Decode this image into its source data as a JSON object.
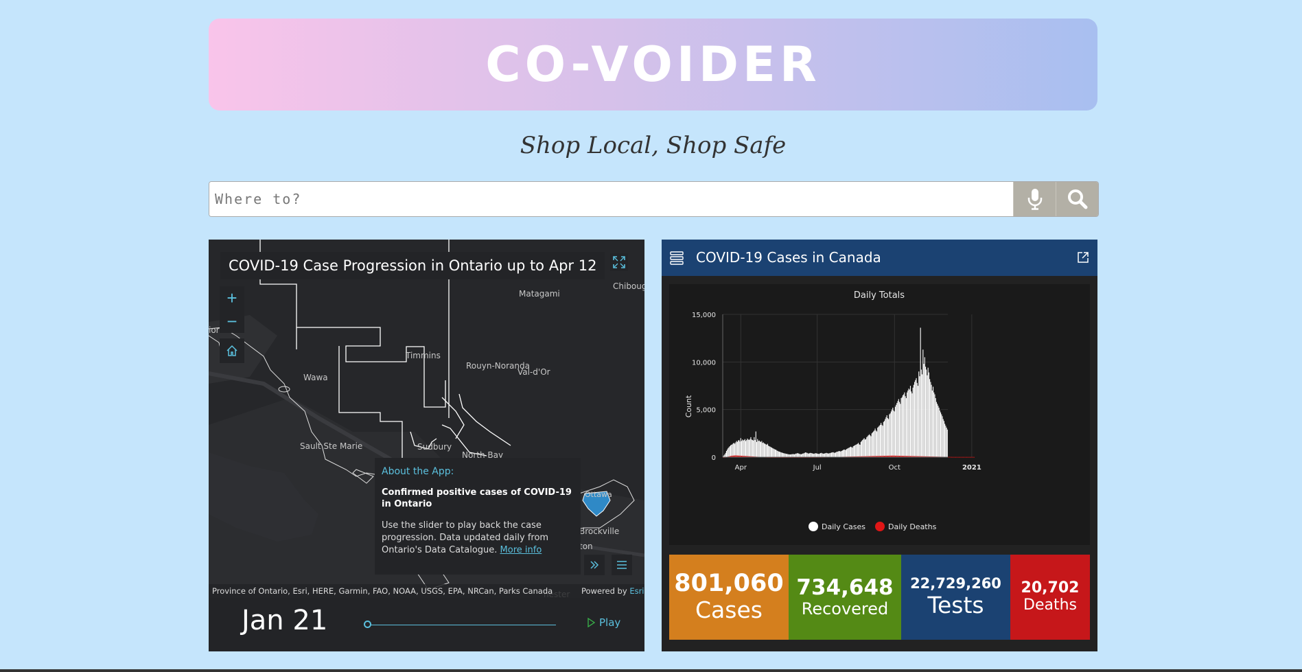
{
  "app": {
    "title": "CO-VOIDER",
    "tagline": "Shop Local, Shop Safe"
  },
  "search": {
    "placeholder": "Where to?",
    "value": "",
    "mic_icon": "microphone-icon",
    "search_icon": "search-icon"
  },
  "map": {
    "title": "COVID-19 Case Progression in Ontario up to Apr 12",
    "cities": [
      "Matagami",
      "Chiboug",
      "Timmins",
      "Rouyn-Noranda",
      "Val-d'Or",
      "Wawa",
      "Sault Ste Marie",
      "Sudbury",
      "North Bay",
      "Ottawa",
      "Brockville",
      "ton",
      "hester",
      "ior"
    ],
    "about": {
      "heading": "About the App:",
      "subheading": "Confirmed positive cases of COVID-19 in Ontario",
      "body": "Use the slider to play back the case progression. Data updated daily from Ontario's Data Catalogue.",
      "link": "More info"
    },
    "attribution": "Province of Ontario, Esri, HERE, Garmin, FAO, NOAA, USGS, EPA, NRCan, Parks Canada",
    "powered_by": "Powered by",
    "powered_link": "Esri",
    "date": "Jan 21",
    "slider_position": 0,
    "play_label": "Play",
    "accent_color": "#5bc0de"
  },
  "dashboard": {
    "title": "COVID-19 Cases in Canada",
    "stats": {
      "cases_value": "801,060",
      "cases_label": "Cases",
      "recovered_value": "734,648",
      "recovered_label": "Recovered",
      "tests_value": "22,729,260",
      "tests_label": "Tests",
      "deaths_value": "20,702",
      "deaths_label": "Deaths"
    },
    "colors": {
      "cases": "#d47f1e",
      "recovered": "#548a15",
      "tests": "#1b4272",
      "deaths": "#c6171a"
    }
  },
  "chart_data": {
    "type": "bar",
    "title": "Daily Totals",
    "xlabel": "",
    "ylabel": "Count",
    "ylim": [
      0,
      15000
    ],
    "yticks": [
      0,
      5000,
      10000,
      15000
    ],
    "ytick_labels": [
      "0",
      "5,000",
      "10,000",
      "15,000"
    ],
    "xtick_labels": [
      "Apr",
      "Jul",
      "Oct",
      "2021"
    ],
    "xtick_days": [
      21,
      112,
      204,
      296
    ],
    "x_start": "2020-03-11",
    "grid": true,
    "legend": "bottom",
    "series": [
      {
        "name": "Daily Cases",
        "color": "#ffffff",
        "values": [
          100,
          180,
          300,
          450,
          650,
          800,
          950,
          1050,
          1150,
          1250,
          1300,
          1350,
          1450,
          1500,
          1400,
          1550,
          1700,
          1600,
          1750,
          1800,
          1650,
          2000,
          1700,
          1850,
          1750,
          1800,
          1900,
          1700,
          1800,
          1950,
          1850,
          1800,
          1900,
          2100,
          1850,
          1800,
          1750,
          2100,
          1800,
          2700,
          1600,
          1900,
          1700,
          1750,
          1650,
          1600,
          1700,
          1500,
          1550,
          1450,
          1400,
          1350,
          1300,
          1400,
          1200,
          1150,
          1100,
          1050,
          1000,
          950,
          900,
          850,
          800,
          780,
          700,
          650,
          600,
          580,
          550,
          500,
          480,
          450,
          420,
          400,
          380,
          350,
          340,
          320,
          300,
          290,
          280,
          300,
          310,
          330,
          320,
          300,
          350,
          380,
          400,
          420,
          380,
          350,
          320,
          300,
          350,
          380,
          400,
          450,
          500,
          480,
          450,
          400,
          380,
          420,
          450,
          430,
          400,
          380,
          350,
          380,
          420,
          400,
          380,
          360,
          340,
          380,
          420,
          450,
          400,
          380,
          360,
          400,
          420,
          450,
          420,
          380,
          400,
          420,
          450,
          480,
          500,
          520,
          480,
          450,
          500,
          550,
          580,
          600,
          650,
          620,
          600,
          650,
          700,
          750,
          800,
          780,
          750,
          850,
          900,
          950,
          1000,
          1050,
          1100,
          1050,
          1000,
          1150,
          1200,
          1250,
          1300,
          1350,
          1400,
          1500,
          1350,
          1300,
          1600,
          1700,
          1800,
          1900,
          2000,
          1850,
          1900,
          2100,
          2200,
          2300,
          2400,
          2300,
          2200,
          2500,
          2600,
          2700,
          2800,
          3000,
          2800,
          2700,
          3100,
          3200,
          3300,
          3400,
          3600,
          3400,
          3300,
          3700,
          3800,
          4000,
          4200,
          4400,
          4100,
          4000,
          4500,
          4600,
          4800,
          5000,
          5200,
          4900,
          4800,
          5300,
          5500,
          5700,
          5900,
          6100,
          5800,
          5600,
          6200,
          6300,
          6500,
          6600,
          6800,
          6400,
          6200,
          6800,
          7000,
          7200,
          7100,
          7500,
          6900,
          6700,
          7300,
          7600,
          7900,
          8100,
          8300,
          7800,
          7500,
          9000,
          8500,
          13600,
          9200,
          8700,
          11300,
          9800,
          10500,
          9500,
          9200,
          8600,
          9400,
          8900,
          8200,
          7900,
          7600,
          7000,
          7400,
          6800,
          6600,
          6200,
          5800,
          5600,
          5400,
          5200,
          4900,
          4700,
          4500,
          4300,
          4000,
          3800,
          3500,
          3300,
          3100,
          2900
        ]
      },
      {
        "name": "Daily Deaths",
        "color": "#e01616",
        "values": [
          0,
          2,
          5,
          10,
          20,
          40,
          60,
          80,
          100,
          120,
          140,
          150,
          160,
          170,
          175,
          180,
          175,
          170,
          165,
          160,
          155,
          150,
          145,
          140,
          135,
          130,
          125,
          120,
          115,
          110,
          100,
          95,
          90,
          85,
          80,
          75,
          70,
          65,
          60,
          55,
          50,
          45,
          40,
          38,
          35,
          30,
          28,
          25,
          22,
          20,
          18,
          15,
          14,
          12,
          10,
          9,
          8,
          7,
          6,
          5,
          5,
          5,
          5,
          5,
          5,
          5,
          5,
          5,
          5,
          5,
          5,
          5,
          5,
          5,
          5,
          5,
          5,
          5,
          5,
          5,
          5,
          5,
          5,
          5,
          5,
          5,
          5,
          5,
          5,
          5,
          5,
          5,
          5,
          5,
          5,
          5,
          5,
          5,
          5,
          5,
          5,
          5,
          5,
          5,
          5,
          5,
          6,
          6,
          7,
          7,
          8,
          8,
          9,
          9,
          10,
          10,
          11,
          11,
          12,
          12,
          13,
          14,
          15,
          16,
          17,
          18,
          19,
          20,
          21,
          22,
          23,
          24,
          25,
          26,
          27,
          28,
          30,
          32,
          34,
          36,
          38,
          40,
          42,
          44,
          46,
          48,
          50,
          52,
          54,
          56,
          58,
          60,
          62,
          64,
          66,
          68,
          70,
          72,
          74,
          76,
          78,
          80,
          82,
          84,
          86,
          88,
          90,
          92,
          94,
          96,
          98,
          100,
          102,
          104,
          106,
          108,
          110,
          112,
          114,
          116,
          118,
          120,
          122,
          124,
          126,
          128,
          130,
          132,
          134,
          136,
          138,
          140,
          142,
          144,
          146,
          148,
          150,
          152,
          154,
          156,
          158,
          160,
          160,
          160,
          158,
          156,
          154,
          152,
          150,
          148,
          146,
          144,
          142,
          140,
          138,
          136,
          134,
          132,
          130,
          128,
          126,
          124,
          122,
          120,
          118,
          116,
          114,
          112,
          110,
          108,
          106,
          104,
          102,
          100,
          98,
          96,
          94,
          92,
          90,
          88,
          86,
          84,
          82,
          80,
          78,
          76,
          74,
          72,
          70,
          68,
          66,
          64,
          62,
          60,
          58,
          56,
          54,
          52,
          50,
          48,
          46,
          44,
          42,
          40,
          38,
          36,
          34,
          32,
          30,
          28,
          26,
          24,
          22,
          20,
          20,
          20,
          20,
          20,
          20,
          20,
          20,
          20,
          20,
          20,
          20,
          20,
          20,
          20,
          20,
          20,
          20,
          20,
          20,
          20,
          20,
          20,
          20,
          20,
          20,
          20
        ]
      }
    ]
  }
}
